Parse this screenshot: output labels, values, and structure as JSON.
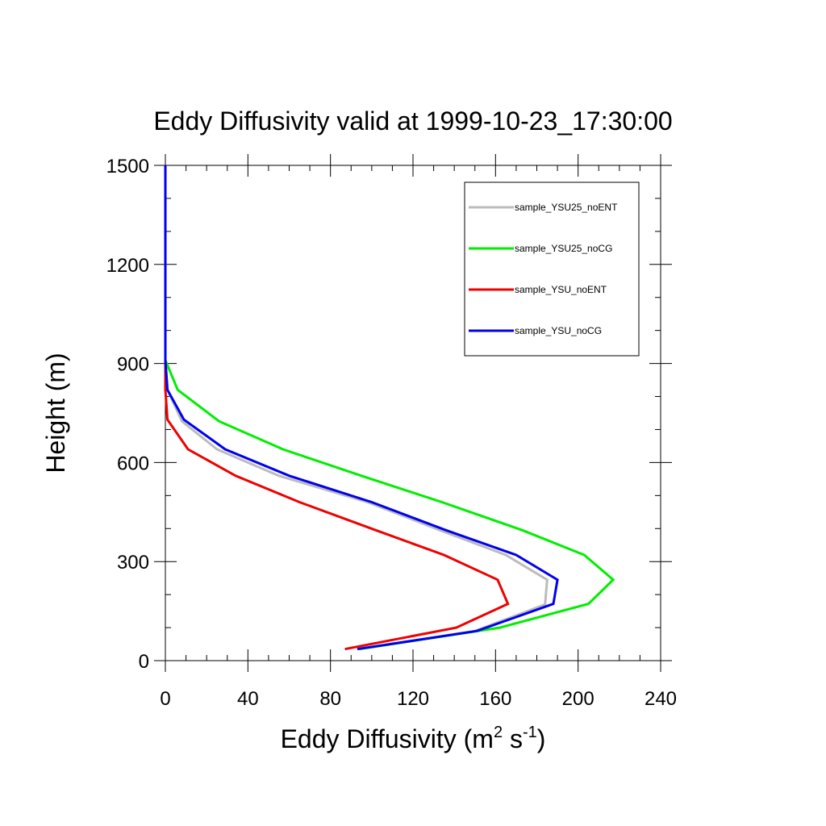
{
  "chart_data": {
    "type": "line",
    "title": "Eddy Diffusivity valid at 1999-10-23_17:30:00",
    "xlabel": {
      "main": "Eddy Diffusivity (m",
      "sup1": "2",
      "mid": " s",
      "sup2": "-1",
      "end": ")"
    },
    "ylabel": "Height (m)",
    "xlim": [
      0,
      240
    ],
    "ylim": [
      0,
      1500
    ],
    "xticks": [
      0,
      40,
      80,
      120,
      160,
      200,
      240
    ],
    "yticks": [
      0,
      300,
      600,
      900,
      1200,
      1500
    ],
    "xticklabels": [
      "0",
      "40",
      "80",
      "120",
      "160",
      "200",
      "240"
    ],
    "yticklabels": [
      "0",
      "300",
      "600",
      "900",
      "1200",
      "1500"
    ],
    "grid": false,
    "legend_position": "top-right",
    "series": [
      {
        "name": "sample_YSU25_noENT",
        "color": "#bbbbbb",
        "x": [
          93,
          150,
          184,
          185,
          165,
          133,
          98,
          55,
          25,
          8,
          1,
          0,
          0,
          0,
          0
        ],
        "y": [
          35,
          90,
          170,
          245,
          320,
          395,
          480,
          560,
          640,
          725,
          820,
          910,
          1000,
          1200,
          1500
        ]
      },
      {
        "name": "sample_YSU25_noCG",
        "color": "#00ee00",
        "x": [
          94,
          162,
          205,
          217,
          203,
          173,
          134,
          95,
          57,
          26,
          6,
          0,
          0,
          0
        ],
        "y": [
          35,
          100,
          172,
          245,
          320,
          395,
          480,
          560,
          640,
          725,
          820,
          910,
          1200,
          1500
        ]
      },
      {
        "name": "sample_YSU_noENT",
        "color": "#ee0000",
        "x": [
          87,
          141,
          166,
          161,
          135,
          102,
          65,
          34,
          11,
          1,
          0,
          0,
          0,
          0
        ],
        "y": [
          35,
          100,
          172,
          245,
          320,
          395,
          480,
          560,
          640,
          730,
          820,
          910,
          1200,
          1500
        ]
      },
      {
        "name": "sample_YSU_noCG",
        "color": "#0000ee",
        "x": [
          93,
          151,
          188,
          190,
          170,
          136,
          100,
          60,
          29,
          9,
          1,
          0,
          0,
          0
        ],
        "y": [
          35,
          90,
          172,
          245,
          320,
          395,
          480,
          560,
          640,
          730,
          820,
          910,
          1200,
          1500
        ]
      }
    ]
  }
}
